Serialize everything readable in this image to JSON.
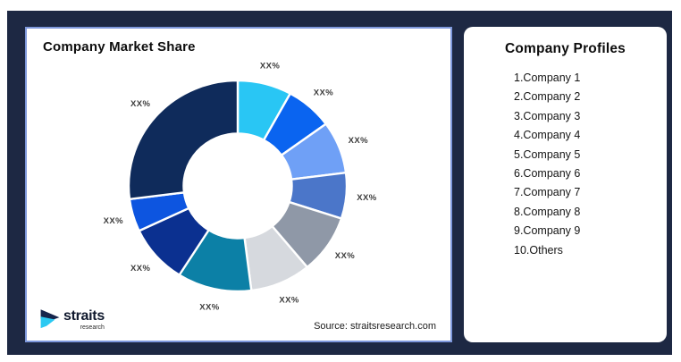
{
  "frame": {
    "background": "#1D2843"
  },
  "left_panel": {
    "title": "Company Market Share",
    "source": "Source: straitsresearch.com",
    "logo": {
      "name": "straits",
      "sub": "research",
      "mark_navy": "#16254C",
      "mark_cyan": "#2BC9F2"
    }
  },
  "right_panel": {
    "title": "Company Profiles",
    "items": [
      "1.Company 1",
      "2.Company 2",
      "3.Company 3",
      "4.Company 4",
      "5.Company 5",
      "6.Company 6",
      "7.Company 7",
      "8.Company 8",
      "9.Company 9",
      "10.Others"
    ]
  },
  "chart_data": {
    "type": "pie",
    "subtype": "donut",
    "title": "Company Market Share",
    "categories": [
      "Company 1",
      "Company 2",
      "Company 3",
      "Company 4",
      "Company 5",
      "Company 6",
      "Company 7",
      "Company 8",
      "Company 9",
      "Others"
    ],
    "values": [
      8,
      7,
      8,
      7,
      9,
      9,
      11,
      9,
      5,
      27
    ],
    "value_labels": [
      "XX%",
      "XX%",
      "XX%",
      "XX%",
      "XX%",
      "XX%",
      "XX%",
      "XX%",
      "XX%",
      "XX%"
    ],
    "colors": [
      "#29C6F4",
      "#0A64F0",
      "#6FA0F6",
      "#4B76C9",
      "#8F98A7",
      "#D6D9DE",
      "#0C80A6",
      "#0B3090",
      "#0D55E0",
      "#0F2B5B"
    ],
    "start_angle_deg": 0,
    "direction": "clockwise",
    "inner_radius_ratio": 0.5,
    "legend": "none",
    "source": "Source: straitsresearch.com"
  }
}
